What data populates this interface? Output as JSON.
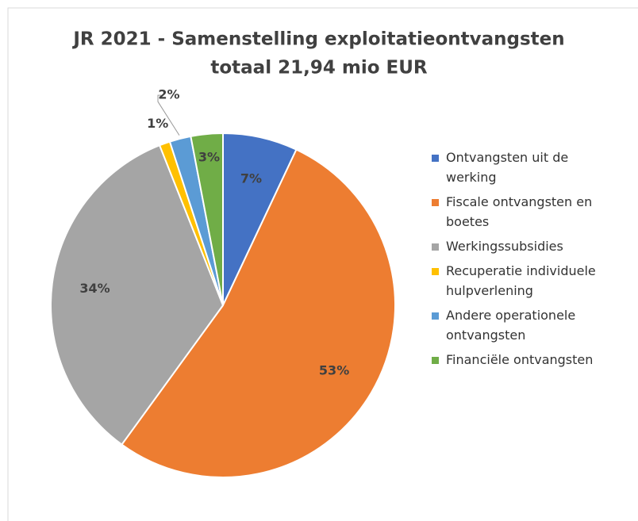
{
  "chart_data": {
    "type": "pie",
    "title": "JR 2021 - Samenstelling exploitatieontvangsten",
    "subtitle": "totaal 21,94 mio EUR",
    "categories": [
      "Ontvangsten uit de werking",
      "Fiscale ontvangsten en boetes",
      "Werkingssubsidies",
      "Recuperatie individuele hulpverlening",
      "Andere operationele ontvangsten",
      "Financiële ontvangsten"
    ],
    "values": [
      7,
      53,
      34,
      1,
      2,
      3
    ],
    "value_labels": [
      "7%",
      "53%",
      "34%",
      "1%",
      "2%",
      "3%"
    ],
    "colors": [
      "#4472c4",
      "#ed7d31",
      "#a5a5a5",
      "#ffc000",
      "#5b9bd5",
      "#70ad47"
    ],
    "legend": "right"
  }
}
